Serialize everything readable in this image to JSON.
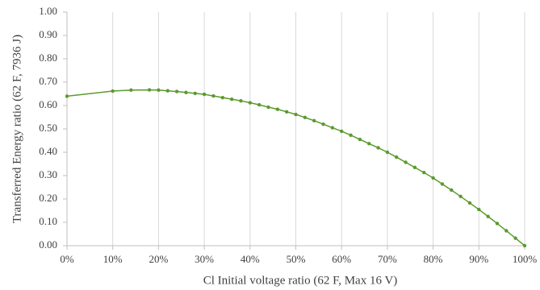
{
  "chart_data": {
    "type": "line",
    "xlabel": "Cl Initial voltage ratio (62 F, Max 16 V)",
    "ylabel": "Transferred Energy ratio (62 F, 7936 J)",
    "x": [
      0,
      10,
      14,
      18,
      20,
      22,
      24,
      26,
      28,
      30,
      32,
      34,
      36,
      38,
      40,
      42,
      44,
      46,
      48,
      50,
      52,
      54,
      56,
      58,
      60,
      62,
      64,
      66,
      68,
      70,
      72,
      74,
      76,
      78,
      80,
      82,
      84,
      86,
      88,
      90,
      92,
      94,
      96,
      98,
      100
    ],
    "series": [
      {
        "color": "#5b9a2e",
        "values": [
          0.64,
          0.662,
          0.666,
          0.667,
          0.666,
          0.663,
          0.66,
          0.656,
          0.652,
          0.648,
          0.641,
          0.634,
          0.627,
          0.62,
          0.612,
          0.603,
          0.593,
          0.584,
          0.573,
          0.562,
          0.549,
          0.535,
          0.52,
          0.505,
          0.49,
          0.473,
          0.455,
          0.437,
          0.419,
          0.4,
          0.379,
          0.357,
          0.335,
          0.313,
          0.29,
          0.264,
          0.238,
          0.211,
          0.183,
          0.155,
          0.125,
          0.095,
          0.064,
          0.032,
          0
        ]
      }
    ],
    "xlim": [
      0,
      100
    ],
    "xticks": [
      {
        "value": 0,
        "label": "0%"
      },
      {
        "value": 10,
        "label": "10%"
      },
      {
        "value": 20,
        "label": "20%"
      },
      {
        "value": 30,
        "label": "30%"
      },
      {
        "value": 40,
        "label": "40%"
      },
      {
        "value": 50,
        "label": "50%"
      },
      {
        "value": 60,
        "label": "60%"
      },
      {
        "value": 70,
        "label": "70%"
      },
      {
        "value": 80,
        "label": "80%"
      },
      {
        "value": 90,
        "label": "90%"
      },
      {
        "value": 100,
        "label": "100%"
      }
    ],
    "ylim": [
      0,
      1
    ],
    "yticks": [
      {
        "value": 0,
        "label": "0.00"
      },
      {
        "value": 0.1,
        "label": "0.10"
      },
      {
        "value": 0.2,
        "label": "0.20"
      },
      {
        "value": 0.3,
        "label": "0.30"
      },
      {
        "value": 0.4,
        "label": "0.40"
      },
      {
        "value": 0.5,
        "label": "0.50"
      },
      {
        "value": 0.6,
        "label": "0.60"
      },
      {
        "value": 0.7,
        "label": "0.70"
      },
      {
        "value": 0.8,
        "label": "0.80"
      },
      {
        "value": 0.9,
        "label": "0.90"
      },
      {
        "value": 1,
        "label": "1.00"
      }
    ],
    "grid": "x"
  }
}
